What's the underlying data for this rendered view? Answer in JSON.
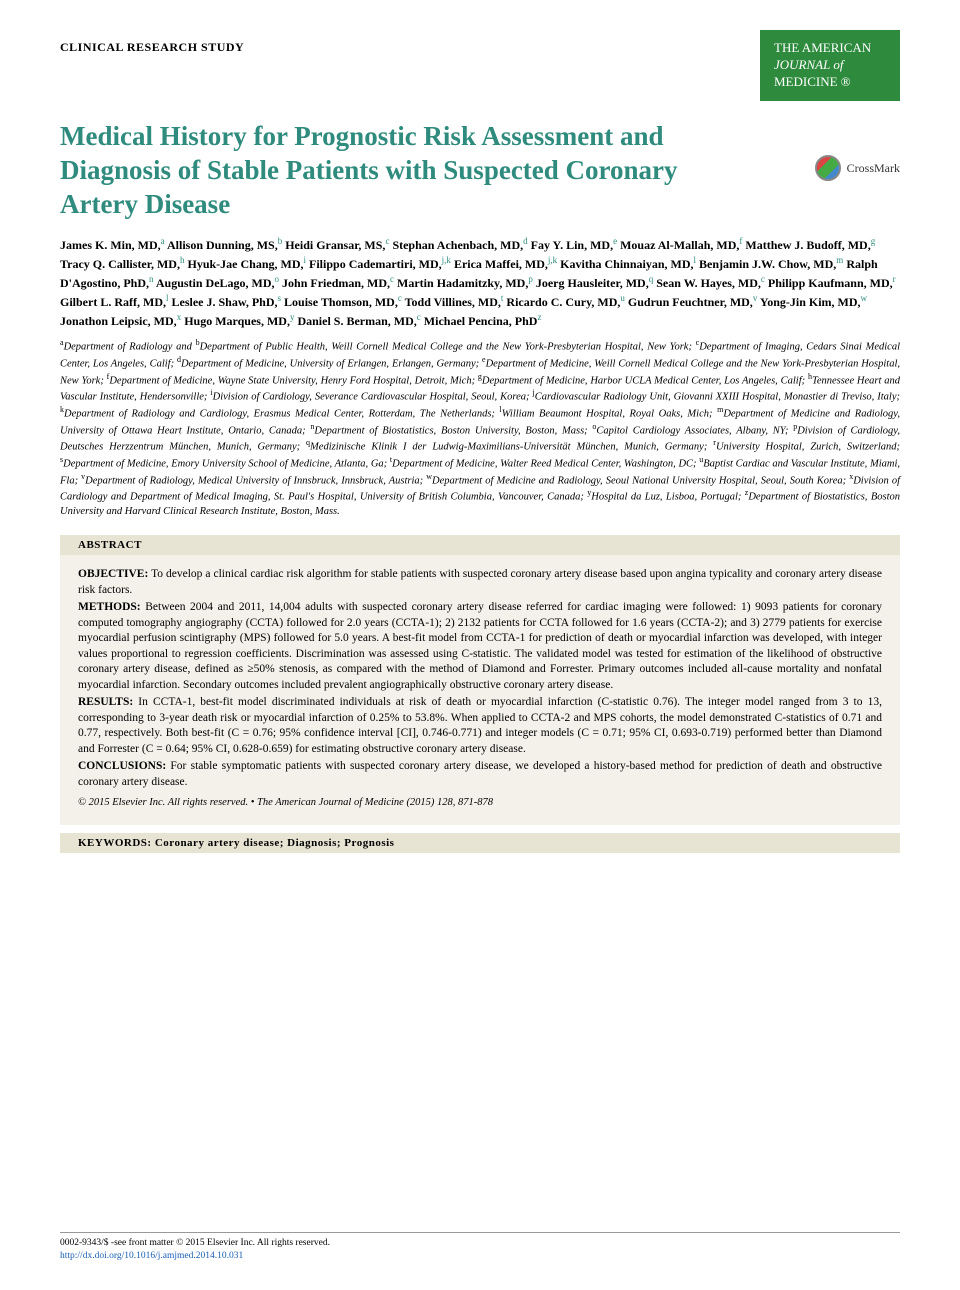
{
  "section_label": "CLINICAL RESEARCH STUDY",
  "journal_badge": {
    "line1": "THE AMERICAN",
    "line2": "JOURNAL of",
    "line3": "MEDICINE ®",
    "bg_color": "#2e8b3d",
    "text_color": "#ffffff"
  },
  "crossmark_label": "CrossMark",
  "title": "Medical History for Prognostic Risk Assessment and Diagnosis of Stable Patients with Suspected Coronary Artery Disease",
  "title_color": "#2e8b7d",
  "authors_html": "James K. Min, MD,<sup>a</sup> Allison Dunning, MS,<sup>b</sup> Heidi Gransar, MS,<sup>c</sup> Stephan Achenbach, MD,<sup>d</sup> Fay Y. Lin, MD,<sup>e</sup> Mouaz Al-Mallah, MD,<sup>f</sup> Matthew J. Budoff, MD,<sup>g</sup> Tracy Q. Callister, MD,<sup>h</sup> Hyuk-Jae Chang, MD,<sup>i</sup> Filippo Cademartiri, MD,<sup>j,k</sup> Erica Maffei, MD,<sup>j,k</sup> Kavitha Chinnaiyan, MD,<sup>l</sup> Benjamin J.W. Chow, MD,<sup>m</sup> Ralph D'Agostino, PhD,<sup>n</sup> Augustin DeLago, MD,<sup>o</sup> John Friedman, MD,<sup>c</sup> Martin Hadamitzky, MD,<sup>p</sup> Joerg Hausleiter, MD,<sup>q</sup> Sean W. Hayes, MD,<sup>c</sup> Philipp Kaufmann, MD,<sup>r</sup> Gilbert L. Raff, MD,<sup>l</sup> Leslee J. Shaw, PhD,<sup>s</sup> Louise Thomson, MD,<sup>c</sup> Todd Villines, MD,<sup>t</sup> Ricardo C. Cury, MD,<sup>u</sup> Gudrun Feuchtner, MD,<sup>v</sup> Yong-Jin Kim, MD,<sup>w</sup> Jonathon Leipsic, MD,<sup>x</sup> Hugo Marques, MD,<sup>y</sup> Daniel S. Berman, MD,<sup>c</sup> Michael Pencina, PhD<sup>z</sup>",
  "affiliations_html": "<sup>a</sup>Department of Radiology and <sup>b</sup>Department of Public Health, Weill Cornell Medical College and the New York-Presbyterian Hospital, New York; <sup>c</sup>Department of Imaging, Cedars Sinai Medical Center, Los Angeles, Calif; <sup>d</sup>Department of Medicine, University of Erlangen, Erlangen, Germany; <sup>e</sup>Department of Medicine, Weill Cornell Medical College and the New York-Presbyterian Hospital, New York; <sup>f</sup>Department of Medicine, Wayne State University, Henry Ford Hospital, Detroit, Mich; <sup>g</sup>Department of Medicine, Harbor UCLA Medical Center, Los Angeles, Calif; <sup>h</sup>Tennessee Heart and Vascular Institute, Hendersonville; <sup>i</sup>Division of Cardiology, Severance Cardiovascular Hospital, Seoul, Korea; <sup>j</sup>Cardiovascular Radiology Unit, Giovanni XXIII Hospital, Monastier di Treviso, Italy; <sup>k</sup>Department of Radiology and Cardiology, Erasmus Medical Center, Rotterdam, The Netherlands; <sup>l</sup>William Beaumont Hospital, Royal Oaks, Mich; <sup>m</sup>Department of Medicine and Radiology, University of Ottawa Heart Institute, Ontario, Canada; <sup>n</sup>Department of Biostatistics, Boston University, Boston, Mass; <sup>o</sup>Capitol Cardiology Associates, Albany, NY; <sup>p</sup>Division of Cardiology, Deutsches Herzzentrum München, Munich, Germany; <sup>q</sup>Medizinische Klinik I der Ludwig-Maximilians-Universität München, Munich, Germany; <sup>r</sup>University Hospital, Zurich, Switzerland; <sup>s</sup>Department of Medicine, Emory University School of Medicine, Atlanta, Ga; <sup>t</sup>Department of Medicine, Walter Reed Medical Center, Washington, DC; <sup>u</sup>Baptist Cardiac and Vascular Institute, Miami, Fla; <sup>v</sup>Department of Radiology, Medical University of Innsbruck, Innsbruck, Austria; <sup>w</sup>Department of Medicine and Radiology, Seoul National University Hospital, Seoul, South Korea; <sup>x</sup>Division of Cardiology and Department of Medical Imaging, St. Paul's Hospital, University of British Columbia, Vancouver, Canada; <sup>y</sup>Hospital da Luz, Lisboa, Portugal; <sup>z</sup>Department of Biostatistics, Boston University and Harvard Clinical Research Institute, Boston, Mass.",
  "abstract": {
    "header": "ABSTRACT",
    "objective_label": "OBJECTIVE:",
    "objective_text": " To develop a clinical cardiac risk algorithm for stable patients with suspected coronary artery disease based upon angina typicality and coronary artery disease risk factors.",
    "methods_label": "METHODS:",
    "methods_text": " Between 2004 and 2011, 14,004 adults with suspected coronary artery disease referred for cardiac imaging were followed: 1) 9093 patients for coronary computed tomography angiography (CCTA) followed for 2.0 years (CCTA-1); 2) 2132 patients for CCTA followed for 1.6 years (CCTA-2); and 3) 2779 patients for exercise myocardial perfusion scintigraphy (MPS) followed for 5.0 years. A best-fit model from CCTA-1 for prediction of death or myocardial infarction was developed, with integer values proportional to regression coefficients. Discrimination was assessed using C-statistic. The validated model was tested for estimation of the likelihood of obstructive coronary artery disease, defined as ≥50% stenosis, as compared with the method of Diamond and Forrester. Primary outcomes included all-cause mortality and nonfatal myocardial infarction. Secondary outcomes included prevalent angiographically obstructive coronary artery disease.",
    "results_label": "RESULTS:",
    "results_text": " In CCTA-1, best-fit model discriminated individuals at risk of death or myocardial infarction (C-statistic 0.76). The integer model ranged from 3 to 13, corresponding to 3-year death risk or myocardial infarction of 0.25% to 53.8%. When applied to CCTA-2 and MPS cohorts, the model demonstrated C-statistics of 0.71 and 0.77, respectively. Both best-fit (C = 0.76; 95% confidence interval [CI], 0.746-0.771) and integer models (C = 0.71; 95% CI, 0.693-0.719) performed better than Diamond and Forrester (C = 0.64; 95% CI, 0.628-0.659) for estimating obstructive coronary artery disease.",
    "conclusions_label": "CONCLUSIONS:",
    "conclusions_text": " For stable symptomatic patients with suspected coronary artery disease, we developed a history-based method for prediction of death and obstructive coronary artery disease.",
    "copyright": "© 2015 Elsevier Inc. All rights reserved. • The American Journal of Medicine (2015) 128, 871-878",
    "bg_color": "#f3f1ea",
    "header_bg_color": "#e8e4d4"
  },
  "keywords": {
    "label": "KEYWORDS:",
    "text": " Coronary artery disease; Diagnosis; Prognosis"
  },
  "footer": {
    "issn_line": "0002-9343/$ -see front matter © 2015 Elsevier Inc. All rights reserved.",
    "doi_link": "http://dx.doi.org/10.1016/j.amjmed.2014.10.031",
    "link_color": "#1a5fb4"
  }
}
